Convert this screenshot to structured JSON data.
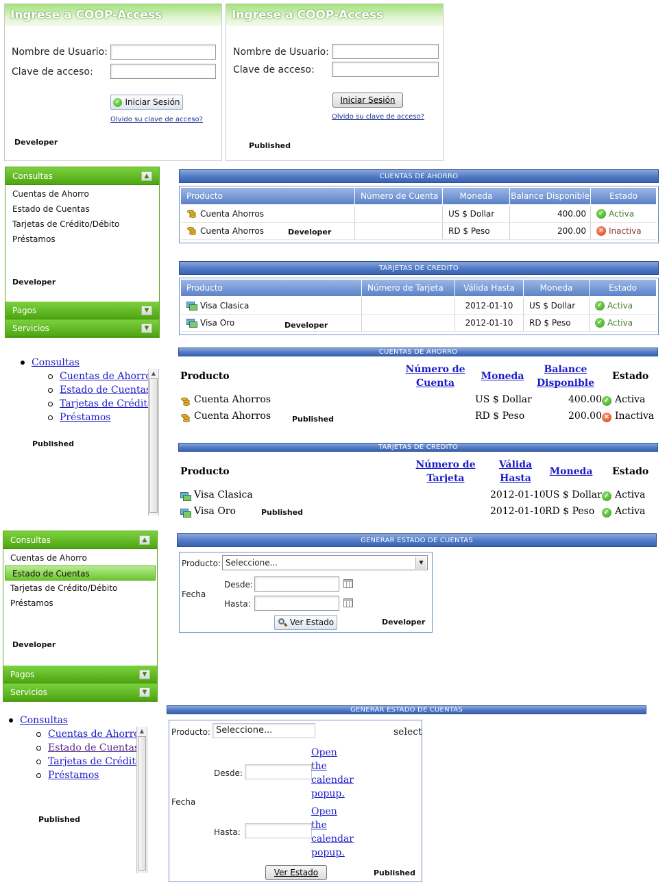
{
  "login_dev": {
    "title": "Ingrese a COOP-Access",
    "username_label": "Nombre de Usuario:",
    "password_label": "Clave de acceso:",
    "submit_label": "Iniciar Sesión",
    "forgot_link": "Olvido su clave de acceso?",
    "tag": "Developer"
  },
  "login_pub": {
    "title": "Ingrese a COOP-Access",
    "username_label": "Nombre de Usuario:",
    "password_label": "Clave de acceso:",
    "submit_label": "Iniciar Sesión",
    "forgot_link": "Olvido su clave de acceso?",
    "tag": "Published"
  },
  "menu_dev_1": {
    "consultas": "Consultas",
    "items": [
      "Cuentas de Ahorro",
      "Estado de Cuentas",
      "Tarjetas de Crédito/Débito",
      "Préstamos"
    ],
    "tag": "Developer",
    "pagos": "Pagos",
    "servicios": "Servicios"
  },
  "menu_pub_1": {
    "consultas": "Consultas",
    "items": [
      "Cuentas de Ahorro",
      "Estado de Cuentas",
      "Tarjetas de Crédito/D",
      "Préstamos"
    ],
    "tag": "Published"
  },
  "menu_dev_2": {
    "consultas": "Consultas",
    "items": [
      "Cuentas de Ahorro",
      "Estado de Cuentas",
      "Tarjetas de Crédito/Débito",
      "Préstamos"
    ],
    "selected_index": 1,
    "tag": "Developer",
    "pagos": "Pagos",
    "servicios": "Servicios"
  },
  "menu_pub_2": {
    "consultas": "Consultas",
    "items": [
      "Cuentas de Ahorro",
      "Estado de Cuentas",
      "Tarjetas de Crédito/D",
      "Préstamos"
    ],
    "tag": "Published"
  },
  "savings_dev": {
    "bar": "CUENTAS DE AHORRO",
    "headers": [
      "Producto",
      "Número de Cuenta",
      "Moneda",
      "Balance Disponible",
      "Estado"
    ],
    "rows": [
      {
        "producto": "Cuenta Ahorros",
        "moneda": "US $ Dollar",
        "balance": "400.00",
        "estado": "Activa",
        "active": true
      },
      {
        "producto": "Cuenta Ahorros",
        "moneda": "RD $ Peso",
        "balance": "200.00",
        "estado": "Inactiva",
        "active": false
      }
    ],
    "tag": "Developer"
  },
  "cards_dev": {
    "bar": "TARJETAS DE CREDITO",
    "headers": [
      "Producto",
      "Número de Tarjeta",
      "Válida Hasta",
      "Moneda",
      "Estado"
    ],
    "rows": [
      {
        "producto": "Visa Clasica",
        "valida": "2012-01-10",
        "moneda": "US $ Dollar",
        "estado": "Activa"
      },
      {
        "producto": "Visa Oro",
        "valida": "2012-01-10",
        "moneda": "RD $ Peso",
        "estado": "Activa"
      }
    ],
    "tag": "Developer"
  },
  "savings_pub": {
    "bar": "CUENTAS DE AHORRO",
    "h_producto": "Producto",
    "h_numero_1": "Número de",
    "h_numero_2": "Cuenta",
    "h_moneda": "Moneda",
    "h_balance_1": "Balance",
    "h_balance_2": "Disponible",
    "h_estado": "Estado",
    "rows": [
      {
        "producto": "Cuenta Ahorros",
        "moneda": "US $ Dollar",
        "balance": "400.00",
        "estado": "Activa"
      },
      {
        "producto": "Cuenta Ahorros",
        "moneda": "RD $ Peso",
        "balance": "200.00",
        "estado": "Inactiva"
      }
    ],
    "tag": "Published"
  },
  "cards_pub": {
    "bar": "TARJETAS DE CREDITO",
    "h_producto": "Producto",
    "h_numero_1": "Número de",
    "h_numero_2": "Tarjeta",
    "h_valida_1": "Válida",
    "h_valida_2": "Hasta",
    "h_moneda": "Moneda",
    "h_estado": "Estado",
    "rows": [
      {
        "producto": "Visa Clasica",
        "valida": "2012-01-10",
        "moneda": "US $ Dollar",
        "estado": "Activa"
      },
      {
        "producto": "Visa Oro",
        "valida": "2012-01-10",
        "moneda": "RD $ Peso",
        "estado": "Activa"
      }
    ],
    "tag": "Published"
  },
  "statement_dev": {
    "bar": "GENERAR ESTADO DE CUENTAS",
    "producto_label": "Producto:",
    "select_value": "Seleccione...",
    "fecha_label": "Fecha",
    "desde_label": "Desde:",
    "hasta_label": "Hasta:",
    "button": "Ver Estado",
    "tag": "Developer"
  },
  "statement_pub": {
    "bar": "GENERAR ESTADO DE CUENTAS",
    "producto_label": "Producto:",
    "select_value": "Seleccione...",
    "select_word": "select",
    "fecha_label": "Fecha",
    "desde_label": "Desde:",
    "hasta_label": "Hasta:",
    "cal_link": [
      "Open",
      "the",
      "calendar",
      "popup."
    ],
    "button": "Ver Estado",
    "tag": "Published"
  },
  "colors": {
    "accent_green": "#5cb91e",
    "header_blue": "#4f78c4",
    "link_blue": "#1b1bc8"
  }
}
